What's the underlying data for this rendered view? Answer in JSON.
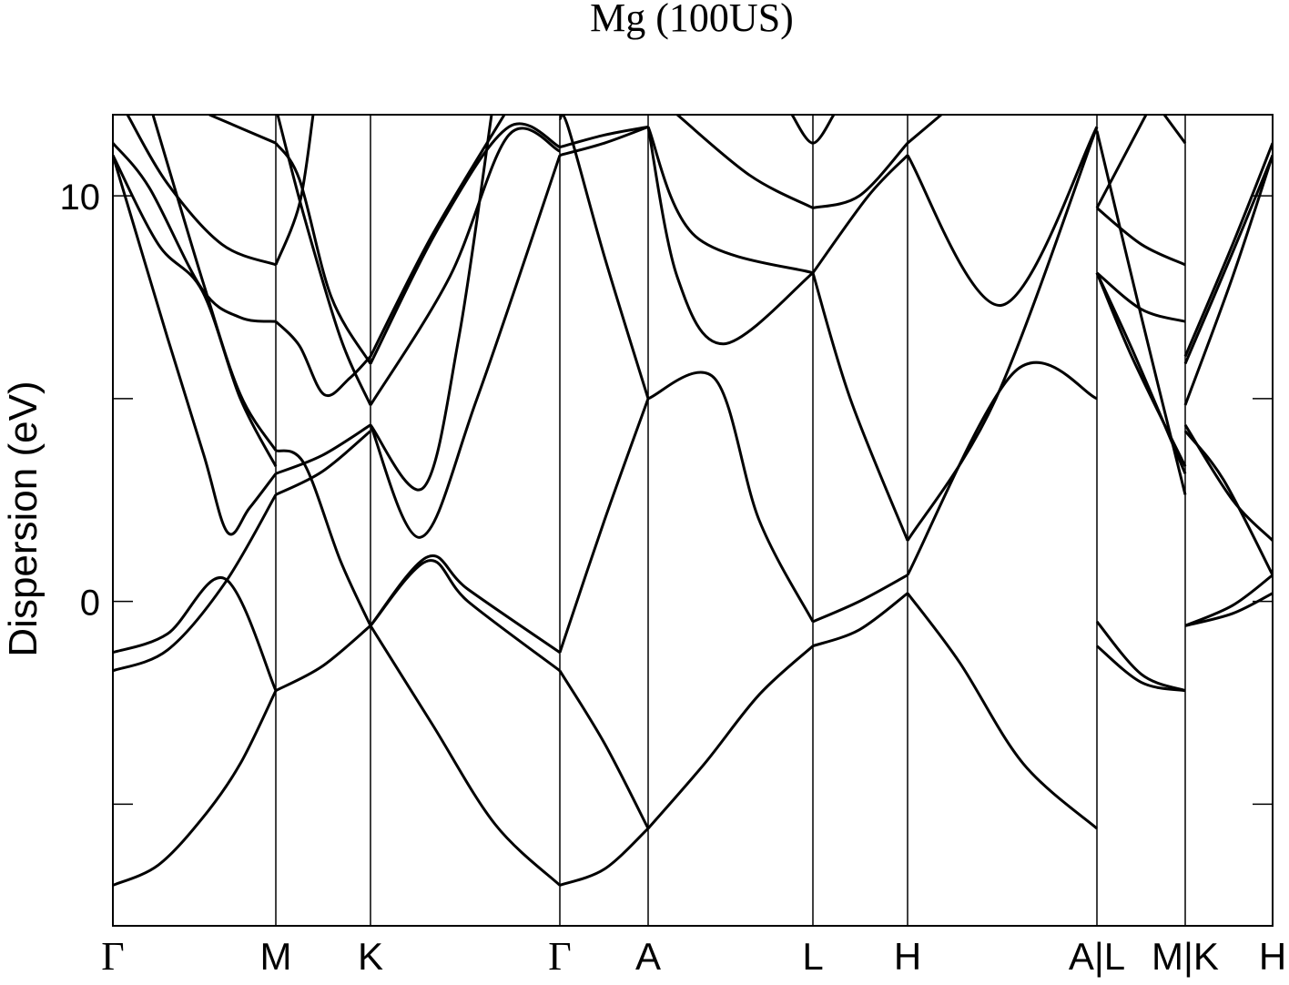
{
  "chart_data": {
    "type": "line",
    "title": "Mg (100US)",
    "y_label": "Dispersion (eV)",
    "color": "#000000",
    "xlim": [
      0,
      12.74
    ],
    "ylim": [
      -8,
      12
    ],
    "xticks": [
      {
        "value": 0,
        "label": "Γ"
      },
      {
        "value": 1.79,
        "label": "M"
      },
      {
        "value": 2.83,
        "label": "K"
      },
      {
        "value": 4.91,
        "label": "Γ"
      },
      {
        "value": 5.88,
        "label": "A"
      },
      {
        "value": 7.69,
        "label": "L"
      },
      {
        "value": 8.73,
        "label": "H"
      },
      {
        "value": 10.81,
        "label": "A|L"
      },
      {
        "value": 11.78,
        "label": "M|K"
      },
      {
        "value": 12.74,
        "label": "H"
      }
    ],
    "yticks": [
      0,
      10
    ],
    "yminor": [
      -5,
      5
    ],
    "xgrid": true,
    "series": [
      {
        "x": [
          0,
          0.5,
          1.0,
          1.4,
          1.79
        ],
        "values": [
          -7.0,
          -6.5,
          -5.3,
          -4.0,
          -2.2
        ]
      },
      {
        "x": [
          0,
          0.6,
          1.23,
          1.79
        ],
        "values": [
          -1.26,
          -0.8,
          0.56,
          -2.2
        ]
      },
      {
        "x": [
          0,
          0.6,
          1.23,
          1.79
        ],
        "values": [
          -1.71,
          -1.2,
          0.45,
          2.63
        ]
      },
      {
        "x": [
          0,
          0.6,
          1.0,
          1.26,
          1.5,
          1.79
        ],
        "values": [
          11.0,
          6.5,
          3.6,
          1.7,
          2.3,
          3.15
        ]
      },
      {
        "x": [
          0,
          0.5,
          0.98,
          1.4,
          1.79
        ],
        "values": [
          11.0,
          8.8,
          7.66,
          5.0,
          3.33
        ]
      },
      {
        "x": [
          0,
          0.4,
          0.98,
          1.4,
          1.79
        ],
        "values": [
          11.3,
          10.2,
          7.7,
          7.0,
          6.9
        ]
      },
      {
        "x": [
          0.16,
          0.6,
          1.2,
          1.79
        ],
        "values": [
          12,
          10.3,
          8.8,
          8.3
        ]
      },
      {
        "x": [
          0.44,
          1.0,
          1.4,
          1.79
        ],
        "values": [
          12,
          7.8,
          5.1,
          3.72
        ]
      },
      {
        "x": [
          1.06,
          1.79
        ],
        "values": [
          12,
          11.3
        ]
      },
      {
        "x": [
          1.79,
          2.3,
          2.83
        ],
        "values": [
          -2.2,
          -1.6,
          -0.6
        ]
      },
      {
        "x": [
          1.79,
          2.1,
          2.5,
          2.83
        ],
        "values": [
          3.72,
          3.4,
          1.0,
          -0.6
        ]
      },
      {
        "x": [
          1.79,
          2.3,
          2.83
        ],
        "values": [
          2.63,
          3.2,
          4.2
        ]
      },
      {
        "x": [
          1.79,
          2.3,
          2.83
        ],
        "values": [
          3.15,
          3.6,
          4.35
        ]
      },
      {
        "x": [
          1.79,
          2.05,
          2.32,
          2.6,
          2.83
        ],
        "values": [
          6.9,
          6.3,
          5.1,
          5.5,
          6.04
        ]
      },
      {
        "x": [
          1.79,
          2.05,
          2.2
        ],
        "values": [
          8.3,
          9.8,
          12
        ]
      },
      {
        "x": [
          1.81,
          2.1,
          2.5,
          2.83
        ],
        "values": [
          12,
          9.5,
          6.5,
          4.84
        ]
      },
      {
        "x": [
          1.79,
          2.05,
          2.4,
          2.83
        ],
        "values": [
          11.3,
          10.4,
          7.5,
          5.86
        ]
      },
      {
        "x": [
          2.83,
          3.5,
          4.2,
          4.91
        ],
        "values": [
          -0.6,
          -3.0,
          -5.5,
          -7.0
        ]
      },
      {
        "x": [
          2.83,
          3.46,
          3.9,
          4.91
        ],
        "values": [
          -0.6,
          1.1,
          0.3,
          -1.26
        ]
      },
      {
        "x": [
          2.83,
          3.46,
          3.9,
          4.91
        ],
        "values": [
          -0.6,
          1.0,
          0.0,
          -1.71
        ]
      },
      {
        "x": [
          2.83,
          3.38,
          4.0,
          4.91
        ],
        "values": [
          4.35,
          1.58,
          5.0,
          11.0
        ]
      },
      {
        "x": [
          2.83,
          3.41,
          3.8,
          4.16
        ],
        "values": [
          4.35,
          2.8,
          6.5,
          12
        ]
      },
      {
        "x": [
          2.83,
          3.7,
          4.35,
          4.91
        ],
        "values": [
          4.84,
          8.0,
          11.5,
          11.1
        ]
      },
      {
        "x": [
          2.83,
          3.6,
          4.35,
          4.91
        ],
        "values": [
          5.86,
          9.3,
          11.7,
          11.2
        ]
      },
      {
        "x": [
          2.83,
          3.5,
          4.3
        ],
        "values": [
          6.04,
          9.0,
          12
        ]
      },
      {
        "x": [
          4.91,
          5.4,
          5.88
        ],
        "values": [
          -7.0,
          -6.6,
          -5.6
        ]
      },
      {
        "x": [
          4.91,
          5.4,
          5.88
        ],
        "values": [
          -1.71,
          -3.5,
          -5.6
        ]
      },
      {
        "x": [
          4.91,
          5.4,
          5.88
        ],
        "values": [
          -1.26,
          2.0,
          5.0
        ]
      },
      {
        "x": [
          4.91,
          5.0,
          5.4,
          5.88
        ],
        "values": [
          11.9,
          11.7,
          8.5,
          5.0
        ]
      },
      {
        "x": [
          4.91,
          5.4,
          5.88
        ],
        "values": [
          11.0,
          11.3,
          11.7
        ]
      },
      {
        "x": [
          4.91,
          5.4,
          5.88
        ],
        "values": [
          11.2,
          11.5,
          11.7
        ]
      },
      {
        "x": [
          5.88,
          6.5,
          7.1,
          7.69
        ],
        "values": [
          -5.6,
          -4.0,
          -2.3,
          -1.1
        ]
      },
      {
        "x": [
          5.88,
          6.61,
          7.1,
          7.69
        ],
        "values": [
          5.0,
          5.5,
          2.0,
          -0.5
        ]
      },
      {
        "x": [
          5.88,
          6.2,
          6.71,
          7.69
        ],
        "values": [
          11.7,
          8.0,
          6.35,
          8.1
        ]
      },
      {
        "x": [
          5.88,
          6.4,
          7.69
        ],
        "values": [
          11.7,
          9.0,
          8.1
        ]
      },
      {
        "x": [
          6.2,
          7.0,
          7.69
        ],
        "values": [
          12,
          10.5,
          9.7
        ]
      },
      {
        "x": [
          7.46,
          7.69,
          7.92
        ],
        "values": [
          12,
          11.3,
          12
        ]
      },
      {
        "x": [
          7.69,
          8.2,
          8.73
        ],
        "values": [
          -0.5,
          0.0,
          0.65
        ]
      },
      {
        "x": [
          7.69,
          8.2,
          8.73
        ],
        "values": [
          -1.1,
          -0.7,
          0.2
        ]
      },
      {
        "x": [
          7.69,
          8.1,
          8.73
        ],
        "values": [
          8.1,
          5.0,
          1.5
        ]
      },
      {
        "x": [
          7.69,
          8.3,
          8.73
        ],
        "values": [
          8.1,
          10.0,
          11.0
        ]
      },
      {
        "x": [
          7.69,
          8.2,
          8.73
        ],
        "values": [
          9.7,
          10.0,
          11.3
        ]
      },
      {
        "x": [
          8.73,
          9.3,
          10.0,
          10.81
        ],
        "values": [
          0.2,
          -1.5,
          -4.0,
          -5.6
        ]
      },
      {
        "x": [
          8.73,
          9.91,
          10.81
        ],
        "values": [
          0.65,
          5.67,
          5.0
        ]
      },
      {
        "x": [
          8.73,
          9.7,
          10.81
        ],
        "values": [
          1.5,
          5.0,
          11.7
        ]
      },
      {
        "x": [
          8.73,
          9.76,
          10.81
        ],
        "values": [
          11.0,
          7.3,
          11.7
        ]
      },
      {
        "x": [
          8.73,
          9.1
        ],
        "values": [
          11.3,
          12
        ]
      },
      {
        "x": [
          10.81,
          11.3,
          11.78
        ],
        "values": [
          -1.1,
          -2.0,
          -2.2
        ]
      },
      {
        "x": [
          10.81,
          11.3,
          11.78
        ],
        "values": [
          -0.5,
          -1.8,
          -2.2
        ]
      },
      {
        "x": [
          10.81,
          11.2,
          11.78
        ],
        "values": [
          8.1,
          6.0,
          3.33
        ]
      },
      {
        "x": [
          10.81,
          11.2,
          11.78
        ],
        "values": [
          8.1,
          6.2,
          3.15
        ]
      },
      {
        "x": [
          10.81,
          11.3,
          11.78
        ],
        "values": [
          8.1,
          7.2,
          6.9
        ]
      },
      {
        "x": [
          10.81,
          11.3,
          11.78
        ],
        "values": [
          9.7,
          8.8,
          8.3
        ]
      },
      {
        "x": [
          10.81,
          11.35
        ],
        "values": [
          9.7,
          12
        ]
      },
      {
        "x": [
          10.81,
          11.3,
          11.78
        ],
        "values": [
          11.6,
          7.0,
          2.63
        ]
      },
      {
        "x": [
          11.55,
          11.78
        ],
        "values": [
          12,
          11.3
        ]
      },
      {
        "x": [
          11.78,
          12.3,
          12.74
        ],
        "values": [
          -0.6,
          -0.3,
          0.2
        ]
      },
      {
        "x": [
          11.78,
          12.3,
          12.74
        ],
        "values": [
          -0.6,
          -0.1,
          0.65
        ]
      },
      {
        "x": [
          11.78,
          12.3,
          12.74
        ],
        "values": [
          4.35,
          2.5,
          1.5
        ]
      },
      {
        "x": [
          11.78,
          12.2,
          12.74
        ],
        "values": [
          4.2,
          3.0,
          0.65
        ]
      },
      {
        "x": [
          11.78,
          12.3,
          12.74
        ],
        "values": [
          4.84,
          8.0,
          11.0
        ]
      },
      {
        "x": [
          11.78,
          12.3,
          12.74
        ],
        "values": [
          5.86,
          8.6,
          11.0
        ]
      },
      {
        "x": [
          11.78,
          12.3,
          12.74
        ],
        "values": [
          6.04,
          8.8,
          11.3
        ]
      }
    ]
  }
}
